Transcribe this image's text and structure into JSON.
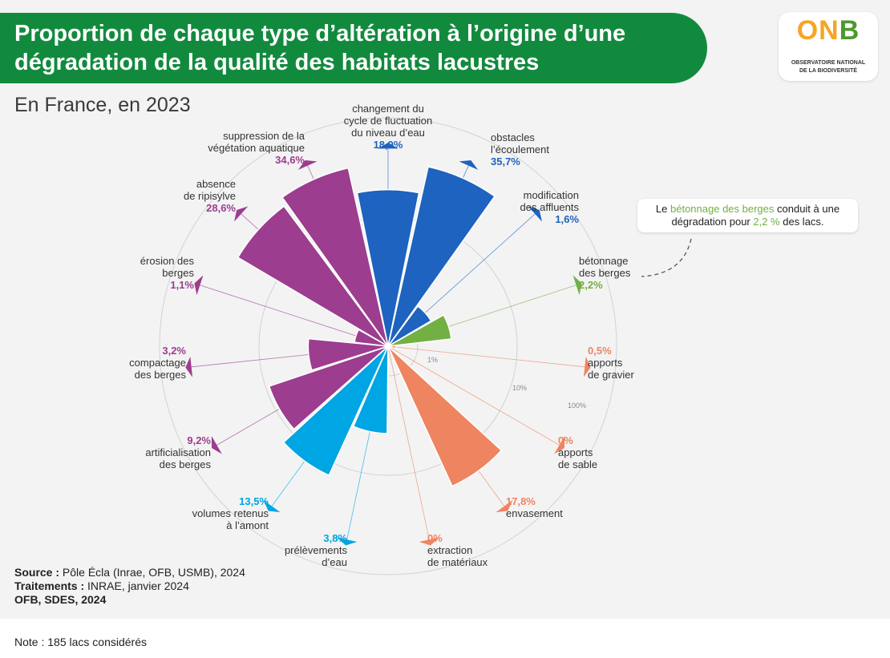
{
  "header": {
    "title": "Proportion de chaque type d’altération à l’origine d’une dégradation de la qualité des habitats lacustres",
    "subtitle": "En France, en 2023"
  },
  "logo": {
    "word_part1": "ON",
    "word_part2": "B",
    "line1": "OBSERVATOIRE NATIONAL",
    "line2": "DE LA BIODIVERSITÉ"
  },
  "callout": {
    "before": "Le ",
    "highlight": "bétonnage des berges",
    "middle": " conduit à une dégradation pour ",
    "value": "2,2 %",
    "after": " des lacs."
  },
  "footer": {
    "source_label": "Source :",
    "source_value": " Pôle Écla (Inrae, OFB, USMB), 2024",
    "treatment_label": "Traitements :",
    "treatment_value": " INRAE, janvier 2024",
    "credit": "OFB, SDES, 2024",
    "note_label": "Note :",
    "note_value": " 185 lacs considérés"
  },
  "colors": {
    "blue": "#1d63bf",
    "green": "#72b043",
    "orange": "#ef8461",
    "cyan": "#00a5e3",
    "purple": "#9c3d8f"
  },
  "chart_data": {
    "type": "polar-bar",
    "scale": "log",
    "rings": [
      {
        "value": 1,
        "label": "1%"
      },
      {
        "value": 10,
        "label": "10%"
      },
      {
        "value": 100,
        "label": "100%"
      }
    ],
    "categories": [
      {
        "label": [
          "changement du",
          "cycle de fluctuation",
          "du niveau d’eau"
        ],
        "value": 18.9,
        "display": "18,9%",
        "group": "blue"
      },
      {
        "label": [
          "obstacles",
          "l’écoulement"
        ],
        "value": 35.7,
        "display": "35,7%",
        "group": "blue"
      },
      {
        "label": [
          "modification",
          "des affluents"
        ],
        "value": 1.6,
        "display": "1,6%",
        "group": "blue"
      },
      {
        "label": [
          "bétonnage",
          "des berges"
        ],
        "value": 2.2,
        "display": "2,2%",
        "group": "green"
      },
      {
        "label": [
          "apports",
          "de gravier"
        ],
        "value": 0.5,
        "display": "0,5%",
        "group": "orange"
      },
      {
        "label": [
          "apports",
          "de sable"
        ],
        "value": 0,
        "display": "0%",
        "group": "orange"
      },
      {
        "label": [
          "envasement"
        ],
        "value": 17.8,
        "display": "17,8%",
        "group": "orange"
      },
      {
        "label": [
          "extraction",
          "de matériaux"
        ],
        "value": 0,
        "display": "0%",
        "group": "orange"
      },
      {
        "label": [
          "prélèvements",
          "d’eau"
        ],
        "value": 3.8,
        "display": "3,8%",
        "group": "cyan"
      },
      {
        "label": [
          "volumes retenus",
          "à l’amont"
        ],
        "value": 13.5,
        "display": "13,5%",
        "group": "cyan"
      },
      {
        "label": [
          "artificialisation",
          "des berges"
        ],
        "value": 9.2,
        "display": "9,2%",
        "group": "purple"
      },
      {
        "label": [
          "compactage",
          "des berges"
        ],
        "value": 3.2,
        "display": "3,2%",
        "group": "purple"
      },
      {
        "label": [
          "érosion des",
          "berges"
        ],
        "value": 1.1,
        "display": "1,1%",
        "group": "purple"
      },
      {
        "label": [
          "absence",
          "de ripisylve"
        ],
        "value": 28.6,
        "display": "28,6%",
        "group": "purple"
      },
      {
        "label": [
          "suppression de la",
          "végétation aquatique"
        ],
        "value": 34.6,
        "display": "34,6%",
        "group": "purple"
      }
    ]
  }
}
